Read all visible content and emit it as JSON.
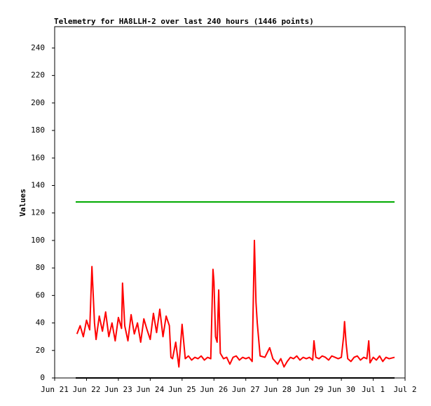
{
  "chart_data": {
    "type": "line",
    "title": "Telemetry for HA8LLH-2 over last 240 hours (1446 points)",
    "ylabel": "Values",
    "xlim": [
      0,
      11
    ],
    "ylim": [
      0,
      255
    ],
    "xticks": [
      {
        "value": 0,
        "label": "Jun 21"
      },
      {
        "value": 1,
        "label": "Jun 22"
      },
      {
        "value": 2,
        "label": "Jun 23"
      },
      {
        "value": 3,
        "label": "Jun 24"
      },
      {
        "value": 4,
        "label": "Jun 25"
      },
      {
        "value": 5,
        "label": "Jun 26"
      },
      {
        "value": 6,
        "label": "Jun 27"
      },
      {
        "value": 7,
        "label": "Jun 28"
      },
      {
        "value": 8,
        "label": "Jun 29"
      },
      {
        "value": 9,
        "label": "Jun 30"
      },
      {
        "value": 10,
        "label": "Jul 1"
      },
      {
        "value": 11,
        "label": "Jul 2"
      }
    ],
    "yticks": [
      0,
      20,
      40,
      60,
      80,
      100,
      120,
      140,
      160,
      180,
      200,
      220,
      240
    ],
    "grid": false,
    "series": [
      {
        "color": "#ff0000",
        "x": [
          0.7,
          0.8,
          0.9,
          1.0,
          1.1,
          1.17,
          1.25,
          1.3,
          1.4,
          1.5,
          1.6,
          1.7,
          1.8,
          1.9,
          2.0,
          2.1,
          2.13,
          2.2,
          2.3,
          2.4,
          2.5,
          2.6,
          2.7,
          2.8,
          2.9,
          3.0,
          3.1,
          3.2,
          3.3,
          3.4,
          3.5,
          3.6,
          3.65,
          3.7,
          3.8,
          3.9,
          4.0,
          4.1,
          4.2,
          4.3,
          4.4,
          4.5,
          4.6,
          4.7,
          4.8,
          4.9,
          4.97,
          5.0,
          5.05,
          5.1,
          5.15,
          5.2,
          5.3,
          5.4,
          5.5,
          5.6,
          5.7,
          5.8,
          5.9,
          6.0,
          6.1,
          6.2,
          6.27,
          6.32,
          6.36,
          6.45,
          6.6,
          6.75,
          6.85,
          7.0,
          7.1,
          7.2,
          7.3,
          7.4,
          7.5,
          7.6,
          7.7,
          7.8,
          7.9,
          8.0,
          8.1,
          8.14,
          8.2,
          8.3,
          8.4,
          8.5,
          8.6,
          8.7,
          8.8,
          8.9,
          9.0,
          9.07,
          9.1,
          9.15,
          9.2,
          9.3,
          9.4,
          9.5,
          9.6,
          9.7,
          9.8,
          9.86,
          9.9,
          10.0,
          10.1,
          10.2,
          10.3,
          10.4,
          10.5,
          10.67
        ],
        "values": [
          32,
          38,
          30,
          42,
          35,
          81,
          40,
          28,
          45,
          34,
          48,
          30,
          40,
          27,
          44,
          36,
          69,
          38,
          27,
          46,
          32,
          40,
          26,
          43,
          35,
          28,
          47,
          33,
          50,
          30,
          45,
          38,
          15,
          14,
          26,
          8,
          39,
          14,
          16,
          13,
          15,
          14,
          16,
          13,
          15,
          14,
          79,
          70,
          30,
          26,
          64,
          18,
          14,
          15,
          10,
          15,
          16,
          13,
          15,
          14,
          15,
          12,
          100,
          55,
          40,
          16,
          15,
          22,
          14,
          10,
          14,
          8,
          12,
          15,
          14,
          16,
          13,
          15,
          14,
          15,
          13,
          27,
          15,
          14,
          16,
          15,
          13,
          16,
          15,
          14,
          15,
          30,
          41,
          25,
          14,
          12,
          15,
          16,
          13,
          15,
          14,
          27,
          11,
          15,
          13,
          16,
          12,
          15,
          14,
          15
        ]
      },
      {
        "color": "#00aa00",
        "x": [
          0.66,
          10.67
        ],
        "values": [
          128,
          128
        ]
      },
      {
        "color": "#000000",
        "x": [
          0.66,
          10.67
        ],
        "values": [
          0,
          0
        ]
      }
    ]
  }
}
